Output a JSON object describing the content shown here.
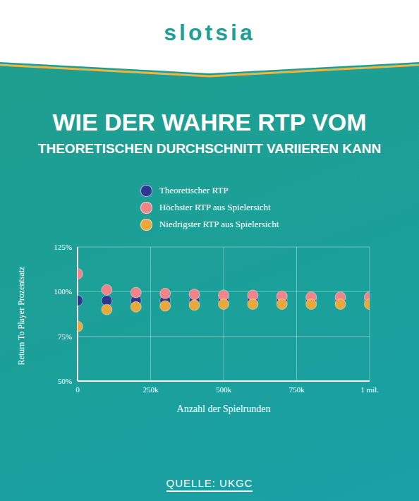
{
  "header": {
    "logo": "slotsia"
  },
  "chart_data": {
    "type": "scatter",
    "title": "WIE DER WAHRE RTP VOM",
    "subtitle": "THEORETISCHEN DURCHSCHNITT VARIIEREN KANN",
    "x_label": "Anzahl der Spielrunden",
    "y_label": "Return To Player Prozentsatz",
    "source": "QUELLE: UKGC",
    "x": [
      0,
      100000,
      200000,
      300000,
      400000,
      500000,
      600000,
      700000,
      800000,
      900000,
      1000000
    ],
    "series": [
      {
        "name": "Theoretischer RTP",
        "color": "#2d3990",
        "values": [
          95,
          95,
          95,
          95,
          95,
          95,
          95,
          95,
          95,
          95,
          95
        ]
      },
      {
        "name": "Höchster RTP aus Spielersicht",
        "color": "#f2838a",
        "values": [
          110,
          101,
          99.5,
          99,
          98.5,
          98,
          98,
          97.5,
          97,
          97,
          97
        ]
      },
      {
        "name": "Niedrigster RTP aus Spielersicht",
        "color": "#e8a83c",
        "values": [
          80.5,
          90,
          91.5,
          92,
          92.5,
          93,
          93,
          93,
          93,
          93,
          93
        ]
      }
    ],
    "xlim": [
      0,
      1000000
    ],
    "xticks": [
      0,
      {
        "value": 250000,
        "label": "250k"
      },
      {
        "value": 500000,
        "label": "500k"
      },
      {
        "value": 750000,
        "label": "750k"
      },
      {
        "value": 1000000,
        "label": "1 mil."
      }
    ],
    "ylim": [
      50,
      125
    ],
    "yticks": [
      {
        "value": 50,
        "label": "50%"
      },
      {
        "value": 75,
        "label": "75%"
      },
      {
        "value": 100,
        "label": "100%"
      },
      {
        "value": 125,
        "label": "125%"
      }
    ],
    "grid": true,
    "legend": "top",
    "marker": "circle"
  }
}
